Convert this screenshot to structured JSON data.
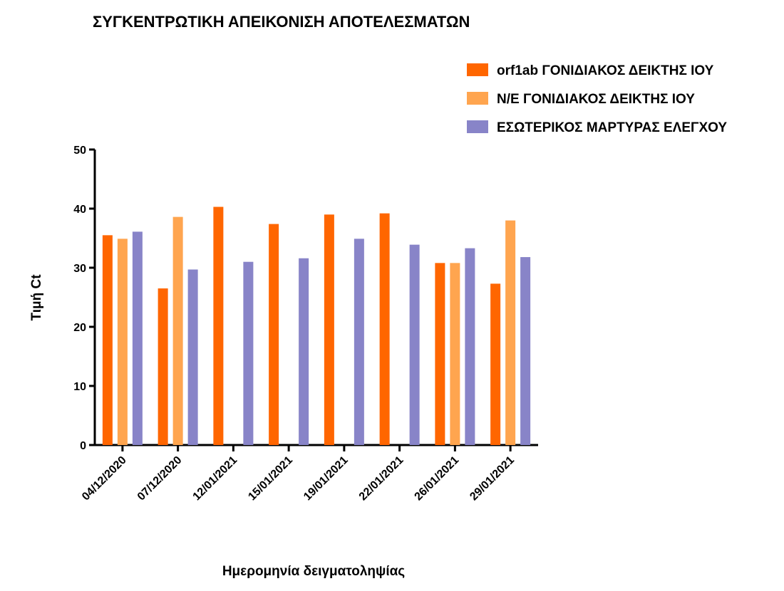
{
  "chart_data": {
    "type": "bar",
    "title": "ΣΥΓΚΕΝΤΡΩΤΙΚΗ ΑΠΕΙΚΟΝΙΣΗ ΑΠΟΤΕΛΕΣΜΑΤΩΝ",
    "xlabel": "Ημερομηνία δειγματοληψίας",
    "ylabel": "Τιμή Ct",
    "ylim": [
      0,
      50
    ],
    "yticks": [
      0,
      10,
      20,
      30,
      40,
      50
    ],
    "categories": [
      "04/12/2020",
      "07/12/2020",
      "12/01/2021",
      "15/01/2021",
      "19/01/2021",
      "22/01/2021",
      "26/01/2021",
      "29/01/2021"
    ],
    "series": [
      {
        "name": "orf1ab ΓΟΝΙΔΙΑΚΟΣ ΔΕΙΚΤΗΣ ΙΟΥ",
        "color": "#ff6600",
        "values": [
          35.5,
          26.5,
          40.3,
          37.4,
          39.0,
          39.2,
          30.8,
          27.3
        ]
      },
      {
        "name": "N/E ΓΟΝΙΔΙΑΚΟΣ ΔΕΙΚΤΗΣ ΙΟΥ",
        "color": "#ffa54f",
        "values": [
          34.9,
          38.6,
          null,
          null,
          null,
          null,
          30.8,
          38.0
        ]
      },
      {
        "name": "ΕΣΩΤΕΡΙΚΟΣ ΜΑΡΤΥΡΑΣ ΕΛΕΓΧΟΥ",
        "color": "#8884c8",
        "values": [
          36.1,
          29.7,
          31.0,
          31.6,
          34.9,
          33.9,
          33.3,
          31.8
        ]
      }
    ],
    "legend_position": "top-right",
    "grid": false
  }
}
